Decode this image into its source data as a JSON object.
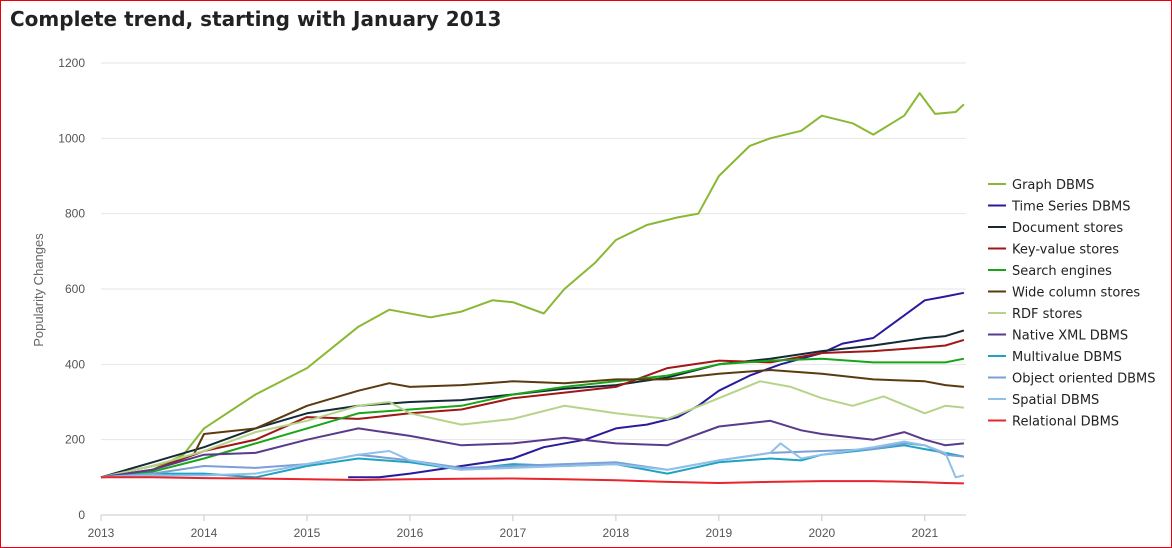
{
  "title": "Complete trend, starting with January 2013",
  "chart_data": {
    "type": "line",
    "ylabel": "Popularity Changes",
    "xlabel": "",
    "ylim": [
      0,
      1200
    ],
    "xlim": [
      2013,
      2021.4
    ],
    "yticks": [
      0,
      200,
      400,
      600,
      800,
      1000,
      1200
    ],
    "xticks": [
      "2013",
      "2014",
      "2015",
      "2016",
      "2017",
      "2018",
      "2019",
      "2020",
      "2021"
    ],
    "grid": "horizontal",
    "legend_position": "right",
    "series": [
      {
        "name": "Graph DBMS",
        "color": "#8ab833",
        "points": [
          [
            2013,
            100
          ],
          [
            2013.5,
            120
          ],
          [
            2013.8,
            160
          ],
          [
            2014,
            230
          ],
          [
            2014.5,
            320
          ],
          [
            2015,
            390
          ],
          [
            2015.5,
            500
          ],
          [
            2015.8,
            545
          ],
          [
            2016.2,
            525
          ],
          [
            2016.5,
            540
          ],
          [
            2016.8,
            570
          ],
          [
            2017,
            565
          ],
          [
            2017.3,
            535
          ],
          [
            2017.5,
            600
          ],
          [
            2017.8,
            670
          ],
          [
            2018,
            730
          ],
          [
            2018.3,
            770
          ],
          [
            2018.6,
            790
          ],
          [
            2018.8,
            800
          ],
          [
            2019,
            900
          ],
          [
            2019.3,
            980
          ],
          [
            2019.5,
            1000
          ],
          [
            2019.8,
            1020
          ],
          [
            2020,
            1060
          ],
          [
            2020.3,
            1040
          ],
          [
            2020.5,
            1010
          ],
          [
            2020.8,
            1060
          ],
          [
            2020.95,
            1120
          ],
          [
            2021.1,
            1065
          ],
          [
            2021.3,
            1070
          ],
          [
            2021.38,
            1090
          ]
        ]
      },
      {
        "name": "Time Series DBMS",
        "color": "#2a1b9c",
        "points": [
          [
            2015.4,
            100
          ],
          [
            2015.7,
            100
          ],
          [
            2016,
            110
          ],
          [
            2016.5,
            130
          ],
          [
            2017,
            150
          ],
          [
            2017.3,
            180
          ],
          [
            2017.7,
            200
          ],
          [
            2018,
            230
          ],
          [
            2018.3,
            240
          ],
          [
            2018.6,
            260
          ],
          [
            2018.8,
            290
          ],
          [
            2019,
            330
          ],
          [
            2019.3,
            370
          ],
          [
            2019.6,
            400
          ],
          [
            2020,
            430
          ],
          [
            2020.2,
            455
          ],
          [
            2020.5,
            470
          ],
          [
            2020.8,
            530
          ],
          [
            2021,
            570
          ],
          [
            2021.2,
            580
          ],
          [
            2021.38,
            590
          ]
        ]
      },
      {
        "name": "Document stores",
        "color": "#152a36",
        "points": [
          [
            2013,
            100
          ],
          [
            2013.5,
            140
          ],
          [
            2014,
            180
          ],
          [
            2014.5,
            230
          ],
          [
            2015,
            270
          ],
          [
            2015.5,
            290
          ],
          [
            2016,
            300
          ],
          [
            2016.5,
            305
          ],
          [
            2017,
            320
          ],
          [
            2017.5,
            335
          ],
          [
            2018,
            345
          ],
          [
            2018.5,
            365
          ],
          [
            2019,
            400
          ],
          [
            2019.5,
            415
          ],
          [
            2020,
            435
          ],
          [
            2020.5,
            450
          ],
          [
            2021,
            470
          ],
          [
            2021.2,
            475
          ],
          [
            2021.38,
            490
          ]
        ]
      },
      {
        "name": "Key-value stores",
        "color": "#a01717",
        "points": [
          [
            2013,
            100
          ],
          [
            2013.5,
            120
          ],
          [
            2014,
            170
          ],
          [
            2014.5,
            200
          ],
          [
            2015,
            260
          ],
          [
            2015.5,
            255
          ],
          [
            2016,
            270
          ],
          [
            2016.5,
            280
          ],
          [
            2017,
            310
          ],
          [
            2017.5,
            325
          ],
          [
            2018,
            340
          ],
          [
            2018.5,
            390
          ],
          [
            2019,
            410
          ],
          [
            2019.5,
            405
          ],
          [
            2020,
            430
          ],
          [
            2020.5,
            435
          ],
          [
            2021,
            445
          ],
          [
            2021.2,
            450
          ],
          [
            2021.38,
            465
          ]
        ]
      },
      {
        "name": "Search engines",
        "color": "#17a617",
        "points": [
          [
            2013,
            100
          ],
          [
            2013.5,
            115
          ],
          [
            2014,
            150
          ],
          [
            2014.5,
            190
          ],
          [
            2015,
            230
          ],
          [
            2015.5,
            270
          ],
          [
            2016,
            280
          ],
          [
            2016.5,
            290
          ],
          [
            2017,
            320
          ],
          [
            2017.5,
            340
          ],
          [
            2018,
            355
          ],
          [
            2018.5,
            370
          ],
          [
            2019,
            400
          ],
          [
            2019.5,
            410
          ],
          [
            2020,
            415
          ],
          [
            2020.5,
            405
          ],
          [
            2021,
            405
          ],
          [
            2021.2,
            405
          ],
          [
            2021.38,
            415
          ]
        ]
      },
      {
        "name": "Wide column stores",
        "color": "#5b3a10",
        "points": [
          [
            2013,
            100
          ],
          [
            2013.5,
            130
          ],
          [
            2013.9,
            160
          ],
          [
            2014,
            215
          ],
          [
            2014.5,
            230
          ],
          [
            2015,
            290
          ],
          [
            2015.5,
            330
          ],
          [
            2015.8,
            350
          ],
          [
            2016,
            340
          ],
          [
            2016.5,
            345
          ],
          [
            2017,
            355
          ],
          [
            2017.5,
            350
          ],
          [
            2018,
            360
          ],
          [
            2018.5,
            360
          ],
          [
            2019,
            375
          ],
          [
            2019.5,
            385
          ],
          [
            2020,
            375
          ],
          [
            2020.5,
            360
          ],
          [
            2021,
            355
          ],
          [
            2021.2,
            345
          ],
          [
            2021.38,
            340
          ]
        ]
      },
      {
        "name": "RDF stores",
        "color": "#b5d48a",
        "points": [
          [
            2013,
            100
          ],
          [
            2013.5,
            130
          ],
          [
            2014,
            170
          ],
          [
            2014.5,
            220
          ],
          [
            2015,
            250
          ],
          [
            2015.5,
            290
          ],
          [
            2015.8,
            300
          ],
          [
            2016,
            270
          ],
          [
            2016.5,
            240
          ],
          [
            2017,
            255
          ],
          [
            2017.5,
            290
          ],
          [
            2018,
            270
          ],
          [
            2018.5,
            255
          ],
          [
            2019,
            310
          ],
          [
            2019.4,
            355
          ],
          [
            2019.7,
            340
          ],
          [
            2020,
            310
          ],
          [
            2020.3,
            290
          ],
          [
            2020.6,
            315
          ],
          [
            2021,
            270
          ],
          [
            2021.2,
            290
          ],
          [
            2021.38,
            285
          ]
        ]
      },
      {
        "name": "Native XML DBMS",
        "color": "#5a3a8c",
        "points": [
          [
            2013,
            100
          ],
          [
            2013.5,
            120
          ],
          [
            2014,
            160
          ],
          [
            2014.5,
            165
          ],
          [
            2015,
            200
          ],
          [
            2015.5,
            230
          ],
          [
            2016,
            210
          ],
          [
            2016.5,
            185
          ],
          [
            2017,
            190
          ],
          [
            2017.5,
            205
          ],
          [
            2018,
            190
          ],
          [
            2018.5,
            185
          ],
          [
            2019,
            235
          ],
          [
            2019.5,
            250
          ],
          [
            2019.8,
            225
          ],
          [
            2020,
            215
          ],
          [
            2020.5,
            200
          ],
          [
            2020.8,
            220
          ],
          [
            2021,
            200
          ],
          [
            2021.2,
            185
          ],
          [
            2021.38,
            190
          ]
        ]
      },
      {
        "name": "Multivalue DBMS",
        "color": "#1fa3c5",
        "points": [
          [
            2013,
            100
          ],
          [
            2013.5,
            110
          ],
          [
            2014,
            110
          ],
          [
            2014.5,
            100
          ],
          [
            2015,
            130
          ],
          [
            2015.5,
            150
          ],
          [
            2016,
            140
          ],
          [
            2016.5,
            120
          ],
          [
            2017,
            135
          ],
          [
            2017.5,
            130
          ],
          [
            2018,
            135
          ],
          [
            2018.5,
            110
          ],
          [
            2019,
            140
          ],
          [
            2019.5,
            150
          ],
          [
            2019.8,
            145
          ],
          [
            2020,
            160
          ],
          [
            2020.5,
            175
          ],
          [
            2020.8,
            185
          ],
          [
            2021,
            175
          ],
          [
            2021.2,
            165
          ],
          [
            2021.38,
            155
          ]
        ]
      },
      {
        "name": "Object oriented DBMS",
        "color": "#7b9fd6",
        "points": [
          [
            2013,
            100
          ],
          [
            2013.5,
            110
          ],
          [
            2014,
            130
          ],
          [
            2014.5,
            125
          ],
          [
            2015,
            135
          ],
          [
            2015.5,
            160
          ],
          [
            2016,
            145
          ],
          [
            2016.5,
            125
          ],
          [
            2017,
            130
          ],
          [
            2017.5,
            135
          ],
          [
            2018,
            140
          ],
          [
            2018.5,
            120
          ],
          [
            2019,
            145
          ],
          [
            2019.5,
            165
          ],
          [
            2020,
            170
          ],
          [
            2020.5,
            175
          ],
          [
            2020.8,
            190
          ],
          [
            2021,
            185
          ],
          [
            2021.2,
            160
          ],
          [
            2021.38,
            155
          ]
        ]
      },
      {
        "name": "Spatial DBMS",
        "color": "#8fc0e8",
        "points": [
          [
            2013,
            100
          ],
          [
            2013.5,
            105
          ],
          [
            2014,
            105
          ],
          [
            2014.5,
            110
          ],
          [
            2015,
            135
          ],
          [
            2015.5,
            160
          ],
          [
            2015.8,
            170
          ],
          [
            2016,
            145
          ],
          [
            2016.5,
            120
          ],
          [
            2017,
            125
          ],
          [
            2017.5,
            130
          ],
          [
            2018,
            135
          ],
          [
            2018.5,
            120
          ],
          [
            2019,
            145
          ],
          [
            2019.5,
            165
          ],
          [
            2019.6,
            190
          ],
          [
            2019.8,
            150
          ],
          [
            2020,
            160
          ],
          [
            2020.5,
            180
          ],
          [
            2020.8,
            195
          ],
          [
            2021,
            185
          ],
          [
            2021.2,
            165
          ],
          [
            2021.3,
            100
          ],
          [
            2021.38,
            105
          ]
        ]
      },
      {
        "name": "Relational DBMS",
        "color": "#e8242c",
        "points": [
          [
            2013,
            100
          ],
          [
            2013.5,
            100
          ],
          [
            2014,
            98
          ],
          [
            2014.5,
            97
          ],
          [
            2015,
            95
          ],
          [
            2015.5,
            93
          ],
          [
            2016,
            95
          ],
          [
            2016.5,
            96
          ],
          [
            2017,
            97
          ],
          [
            2017.5,
            95
          ],
          [
            2018,
            92
          ],
          [
            2018.5,
            88
          ],
          [
            2019,
            85
          ],
          [
            2019.5,
            88
          ],
          [
            2020,
            90
          ],
          [
            2020.5,
            90
          ],
          [
            2021,
            87
          ],
          [
            2021.2,
            85
          ],
          [
            2021.38,
            84
          ]
        ]
      }
    ]
  }
}
